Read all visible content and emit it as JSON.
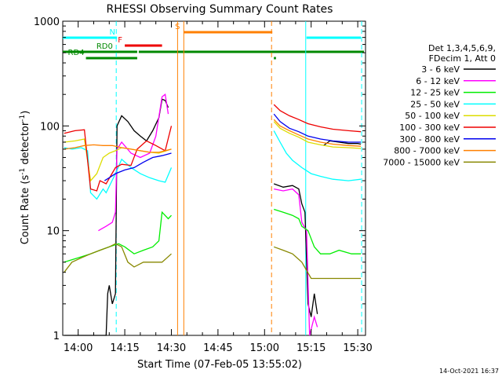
{
  "chart_data": {
    "type": "line",
    "title": "RHESSI Observing Summary Count Rates",
    "xlabel": "Start Time (07-Feb-05 13:55:02)",
    "ylabel": "Count Rate (s⁻¹ detector⁻¹)",
    "ylabel_main": "Count Rate (s",
    "ylabel_sup1": "-1",
    "ylabel_mid": " detector",
    "ylabel_sup2": "-1",
    "ylabel_end": ")",
    "y_scale": "log",
    "ylim": [
      1,
      1000
    ],
    "xlim": [
      "13:55:02",
      "15:32:30"
    ],
    "x_ticks": [
      "14:00",
      "14:15",
      "14:30",
      "14:45",
      "15:00",
      "15:15",
      "15:30"
    ],
    "y_ticks": [
      "1",
      "10",
      "100",
      "1000"
    ],
    "legend_header": [
      "Det 1,3,4,5,6,9,",
      "FDecim 1, Att 0"
    ],
    "footer": "14-Oct-2021 16:37",
    "flags": [
      {
        "label": "N",
        "color": "#00ffff",
        "intervals": [
          [
            "13:55:02",
            "14:12:30"
          ],
          [
            "15:13:30",
            "15:31:00"
          ]
        ]
      },
      {
        "label": "F",
        "color": "#ee0000",
        "intervals": [
          [
            "14:15:00",
            "14:27:00"
          ]
        ]
      },
      {
        "label": "S",
        "color": "#ff8000",
        "intervals": [
          [
            "14:34:00",
            "15:02:30"
          ]
        ]
      },
      {
        "label": "RD0",
        "color": "#008800",
        "intervals": [
          [
            "13:55:02",
            "14:19:00"
          ],
          [
            "14:19:30",
            "15:32:00"
          ]
        ]
      },
      {
        "label": "RD4",
        "color": "#008800",
        "intervals": [
          [
            "14:02:30",
            "14:19:00"
          ],
          [
            "15:03:00",
            "15:03:40"
          ]
        ]
      }
    ],
    "vlines": [
      {
        "time": "14:12:15",
        "color": "#00ffff",
        "style": "dashed"
      },
      {
        "time": "14:32:00",
        "color": "#ff8000",
        "style": "solid"
      },
      {
        "time": "14:34:00",
        "color": "#ff8000",
        "style": "solid"
      },
      {
        "time": "15:02:15",
        "color": "#ff8000",
        "style": "dashed"
      },
      {
        "time": "15:13:15",
        "color": "#00ffff",
        "style": "solid"
      },
      {
        "time": "15:31:15",
        "color": "#00ffff",
        "style": "dashed"
      }
    ],
    "series": [
      {
        "name": "3 - 6 keV",
        "color": "#000000",
        "segments": [
          [
            [
              "13:55:30",
              0
            ],
            [
              "14:09:00",
              0
            ],
            [
              "14:09:30",
              2.5
            ],
            [
              "14:10:00",
              3
            ],
            [
              "14:11:00",
              2
            ],
            [
              "14:12:00",
              2.5
            ],
            [
              "14:12:30",
              100
            ],
            [
              "14:14:00",
              125
            ],
            [
              "14:16:00",
              110
            ],
            [
              "14:18:00",
              90
            ],
            [
              "14:20:00",
              80
            ],
            [
              "14:22:00",
              72
            ],
            [
              "14:24:00",
              90
            ],
            [
              "14:26:00",
              120
            ],
            [
              "14:27:00",
              180
            ],
            [
              "14:28:00",
              175
            ],
            [
              "14:29:00",
              150
            ]
          ],
          [
            [
              "15:03:00",
              28
            ],
            [
              "15:06:00",
              26
            ],
            [
              "15:09:00",
              27
            ],
            [
              "15:11:00",
              25
            ],
            [
              "15:12:00",
              18
            ],
            [
              "15:13:00",
              15
            ],
            [
              "15:14:00",
              2
            ],
            [
              "15:15:00",
              1.5
            ],
            [
              "15:16:00",
              2.5
            ],
            [
              "15:17:00",
              1.6
            ]
          ],
          [
            [
              "15:19:00",
              65
            ],
            [
              "15:21:00",
              72
            ],
            [
              "15:24:00",
              70
            ],
            [
              "15:27:00",
              68
            ],
            [
              "15:30:00",
              68
            ],
            [
              "15:31:00",
              67
            ]
          ]
        ]
      },
      {
        "name": "6 - 12 keV",
        "color": "#ff00ff",
        "segments": [
          [
            [
              "14:06:30",
              10
            ],
            [
              "14:09:00",
              11
            ],
            [
              "14:11:00",
              12
            ],
            [
              "14:12:00",
              15
            ],
            [
              "14:12:30",
              60
            ],
            [
              "14:14:00",
              70
            ],
            [
              "14:17:00",
              55
            ],
            [
              "14:20:00",
              50
            ],
            [
              "14:23:00",
              55
            ],
            [
              "14:25:00",
              80
            ],
            [
              "14:27:00",
              190
            ],
            [
              "14:28:00",
              200
            ],
            [
              "14:29:00",
              130
            ]
          ],
          [
            [
              "15:03:00",
              25
            ],
            [
              "15:06:00",
              24
            ],
            [
              "15:09:00",
              25
            ],
            [
              "15:11:00",
              22
            ],
            [
              "15:12:00",
              12
            ],
            [
              "15:13:30",
              10
            ],
            [
              "15:14:30",
              1
            ],
            [
              "15:16:00",
              1.5
            ],
            [
              "15:17:00",
              1.2
            ]
          ]
        ]
      },
      {
        "name": "12 - 25 keV",
        "color": "#00ee00",
        "segments": [
          [
            [
              "13:55:30",
              5
            ],
            [
              "14:00:00",
              5.5
            ],
            [
              "14:04:00",
              6
            ],
            [
              "14:07:00",
              6.5
            ],
            [
              "14:10:00",
              7
            ],
            [
              "14:13:00",
              7.5
            ],
            [
              "14:15:00",
              7
            ],
            [
              "14:18:00",
              6
            ],
            [
              "14:21:00",
              6.5
            ],
            [
              "14:24:00",
              7
            ],
            [
              "14:26:00",
              8
            ],
            [
              "14:27:00",
              15
            ],
            [
              "14:29:00",
              13
            ],
            [
              "14:30:00",
              14
            ]
          ],
          [
            [
              "15:03:00",
              16
            ],
            [
              "15:06:00",
              15
            ],
            [
              "15:09:00",
              14
            ],
            [
              "15:11:00",
              13
            ],
            [
              "15:12:00",
              11
            ],
            [
              "15:14:00",
              10
            ],
            [
              "15:16:00",
              7
            ],
            [
              "15:18:00",
              6
            ],
            [
              "15:21:00",
              6
            ],
            [
              "15:24:00",
              6.5
            ],
            [
              "15:28:00",
              6
            ],
            [
              "15:31:00",
              6
            ]
          ]
        ]
      },
      {
        "name": "25 - 50 keV",
        "color": "#00ffff",
        "segments": [
          [
            [
              "13:55:30",
              62
            ],
            [
              "13:58:00",
              60
            ],
            [
              "14:01:00",
              62
            ],
            [
              "14:03:00",
              58
            ],
            [
              "14:04:00",
              23
            ],
            [
              "14:06:00",
              20
            ],
            [
              "14:08:00",
              25
            ],
            [
              "14:09:00",
              23
            ],
            [
              "14:12:00",
              35
            ],
            [
              "14:14:00",
              48
            ],
            [
              "14:17:00",
              40
            ],
            [
              "14:20:00",
              35
            ],
            [
              "14:23:00",
              32
            ],
            [
              "14:26:00",
              30
            ],
            [
              "14:28:00",
              29
            ],
            [
              "14:30:00",
              40
            ]
          ],
          [
            [
              "15:03:00",
              90
            ],
            [
              "15:05:00",
              70
            ],
            [
              "15:07:00",
              55
            ],
            [
              "15:09:00",
              47
            ],
            [
              "15:12:00",
              40
            ],
            [
              "15:15:00",
              35
            ],
            [
              "15:18:00",
              33
            ],
            [
              "15:22:00",
              31
            ],
            [
              "15:27:00",
              30
            ],
            [
              "15:31:00",
              31
            ]
          ]
        ]
      },
      {
        "name": "50 - 100 keV",
        "color": "#dddd00",
        "segments": [
          [
            [
              "13:55:30",
              70
            ],
            [
              "13:59:00",
              72
            ],
            [
              "14:02:00",
              75
            ],
            [
              "14:04:00",
              30
            ],
            [
              "14:06:00",
              35
            ],
            [
              "14:08:00",
              50
            ],
            [
              "14:10:00",
              55
            ],
            [
              "14:12:00",
              58
            ],
            [
              "14:14:00",
              62
            ],
            [
              "14:17:00",
              60
            ],
            [
              "14:20:00",
              58
            ],
            [
              "14:23:00",
              56
            ],
            [
              "14:26:00",
              55
            ],
            [
              "14:30:00",
              60
            ]
          ],
          [
            [
              "15:03:00",
              110
            ],
            [
              "15:05:00",
              95
            ],
            [
              "15:08:00",
              85
            ],
            [
              "15:11:00",
              78
            ],
            [
              "15:14:00",
              70
            ],
            [
              "15:18:00",
              66
            ],
            [
              "15:22:00",
              63
            ],
            [
              "15:27:00",
              62
            ],
            [
              "15:31:00",
              61
            ]
          ]
        ]
      },
      {
        "name": "100 - 300 keV",
        "color": "#ee0000",
        "segments": [
          [
            [
              "13:55:30",
              85
            ],
            [
              "13:59:00",
              90
            ],
            [
              "14:02:00",
              92
            ],
            [
              "14:04:00",
              25
            ],
            [
              "14:06:00",
              24
            ],
            [
              "14:07:00",
              30
            ],
            [
              "14:09:00",
              28
            ],
            [
              "14:12:00",
              40
            ],
            [
              "14:14:00",
              43
            ],
            [
              "14:17:00",
              42
            ],
            [
              "14:19:00",
              60
            ],
            [
              "14:22:00",
              72
            ],
            [
              "14:25:00",
              65
            ],
            [
              "14:28:00",
              58
            ],
            [
              "14:30:00",
              100
            ]
          ],
          [
            [
              "15:03:00",
              160
            ],
            [
              "15:05:00",
              140
            ],
            [
              "15:08:00",
              125
            ],
            [
              "15:11:00",
              115
            ],
            [
              "15:14:00",
              105
            ],
            [
              "15:18:00",
              98
            ],
            [
              "15:22:00",
              93
            ],
            [
              "15:27:00",
              90
            ],
            [
              "15:31:00",
              88
            ]
          ]
        ]
      },
      {
        "name": "300 - 800 keV",
        "color": "#0000ee",
        "segments": [
          [
            [
              "14:08:30",
              30
            ],
            [
              "14:10:00",
              32
            ],
            [
              "14:12:00",
              35
            ],
            [
              "14:15:00",
              38
            ],
            [
              "14:18:00",
              40
            ],
            [
              "14:21:00",
              45
            ],
            [
              "14:24:00",
              50
            ],
            [
              "14:27:00",
              52
            ],
            [
              "14:30:00",
              55
            ]
          ],
          [
            [
              "15:03:00",
              130
            ],
            [
              "15:05:00",
              110
            ],
            [
              "15:08:00",
              95
            ],
            [
              "15:11:00",
              88
            ],
            [
              "15:14:00",
              80
            ],
            [
              "15:18:00",
              75
            ],
            [
              "15:22:00",
              72
            ],
            [
              "15:27:00",
              70
            ],
            [
              "15:31:00",
              70
            ]
          ]
        ]
      },
      {
        "name": "800 - 7000 keV",
        "color": "#ff8000",
        "segments": [
          [
            [
              "13:55:30",
              60
            ],
            [
              "13:59:00",
              62
            ],
            [
              "14:02:00",
              65
            ],
            [
              "14:05:00",
              66
            ],
            [
              "14:08:00",
              65
            ],
            [
              "14:11:00",
              65
            ],
            [
              "14:14:00",
              62
            ],
            [
              "14:17:00",
              60
            ],
            [
              "14:20:00",
              58
            ],
            [
              "14:23:00",
              56
            ],
            [
              "14:26:00",
              56
            ],
            [
              "14:30:00",
              60
            ]
          ],
          [
            [
              "15:03:00",
              115
            ],
            [
              "15:05:00",
              100
            ],
            [
              "15:08:00",
              90
            ],
            [
              "15:11:00",
              82
            ],
            [
              "15:14:00",
              75
            ],
            [
              "15:18:00",
              70
            ],
            [
              "15:22:00",
              67
            ],
            [
              "15:27:00",
              65
            ],
            [
              "15:31:00",
              64
            ]
          ]
        ]
      },
      {
        "name": "7000 - 15000 keV",
        "color": "#888800",
        "segments": [
          [
            [
              "13:55:30",
              4
            ],
            [
              "13:58:00",
              5
            ],
            [
              "14:01:00",
              5.5
            ],
            [
              "14:04:00",
              6
            ],
            [
              "14:07:00",
              6.5
            ],
            [
              "14:10:00",
              7
            ],
            [
              "14:12:00",
              7.5
            ],
            [
              "14:14:00",
              7
            ],
            [
              "14:16:00",
              5
            ],
            [
              "14:18:00",
              4.5
            ],
            [
              "14:21:00",
              5
            ],
            [
              "14:24:00",
              5
            ],
            [
              "14:27:00",
              5
            ],
            [
              "14:30:00",
              6
            ]
          ],
          [
            [
              "15:03:00",
              7
            ],
            [
              "15:06:00",
              6.5
            ],
            [
              "15:09:00",
              6
            ],
            [
              "15:12:00",
              5
            ],
            [
              "15:15:00",
              3.5
            ],
            [
              "15:18:00",
              3.5
            ],
            [
              "15:21:00",
              3.5
            ],
            [
              "15:25:00",
              3.5
            ],
            [
              "15:31:00",
              3.5
            ]
          ]
        ]
      }
    ]
  }
}
